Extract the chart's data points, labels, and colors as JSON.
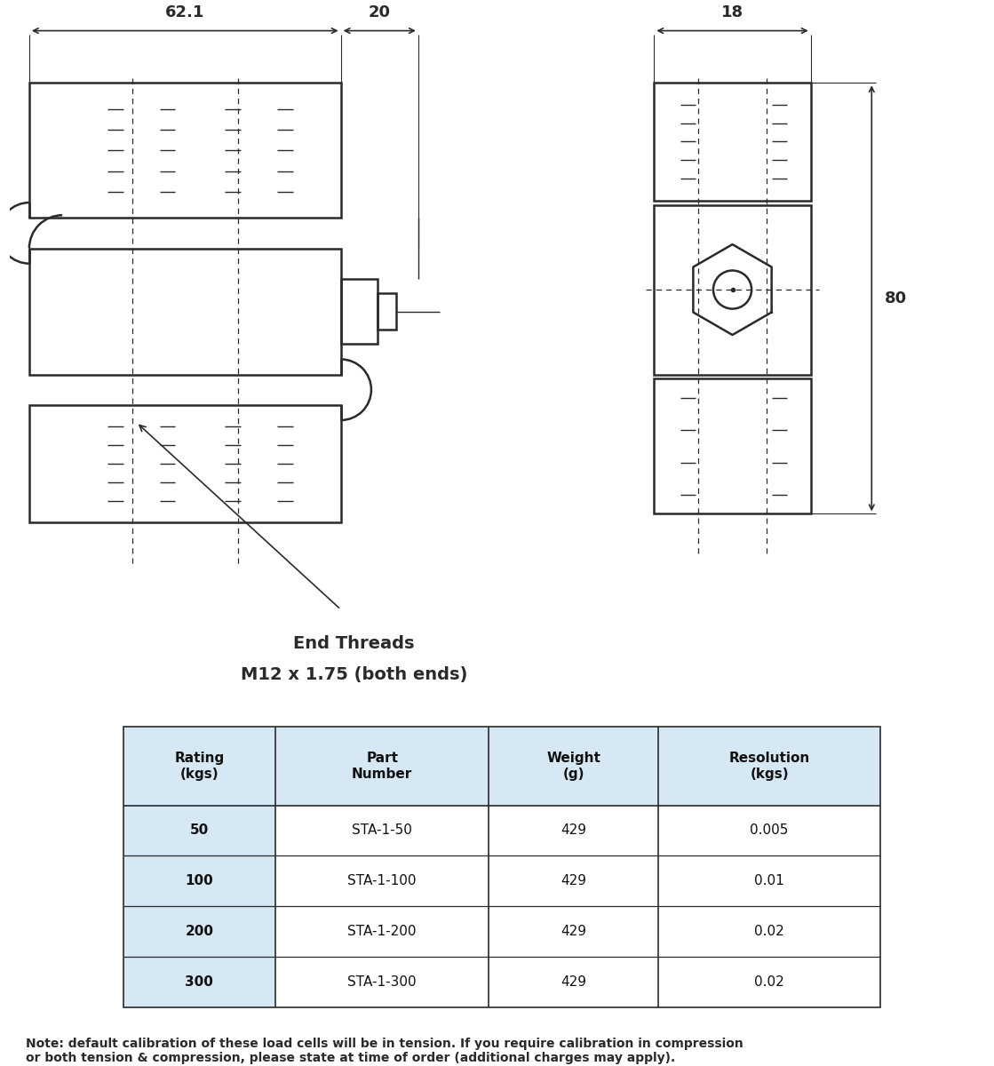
{
  "bg_color": "#ffffff",
  "line_color": "#2a2a2a",
  "dim_color": "#2a2a2a",
  "text_color": "#2a2a2a",
  "table_bg_header": "#d6e8f4",
  "table_bg_col1": "#d6e8f4",
  "table_border_color": "#888888",
  "dim_62": "62.1",
  "dim_20": "20",
  "dim_18": "18",
  "dim_80": "80",
  "annotation_line1": "End Threads",
  "annotation_line2": "M12 x 1.75 (both ends)",
  "table_headers": [
    "Rating\n(kgs)",
    "Part\nNumber",
    "Weight\n(g)",
    "Resolution\n(kgs)"
  ],
  "table_data": [
    [
      "50",
      "STA-1-50",
      "429",
      "0.005"
    ],
    [
      "100",
      "STA-1-100",
      "429",
      "0.01"
    ],
    [
      "200",
      "STA-1-200",
      "429",
      "0.02"
    ],
    [
      "300",
      "STA-1-300",
      "429",
      "0.02"
    ]
  ],
  "note_text": "Note: default calibration of these load cells will be in tension. If you require calibration in compression\nor both tension & compression, please state at time of order (additional charges may apply).",
  "fig_width": 11.19,
  "fig_height": 12.0,
  "dpi": 100
}
